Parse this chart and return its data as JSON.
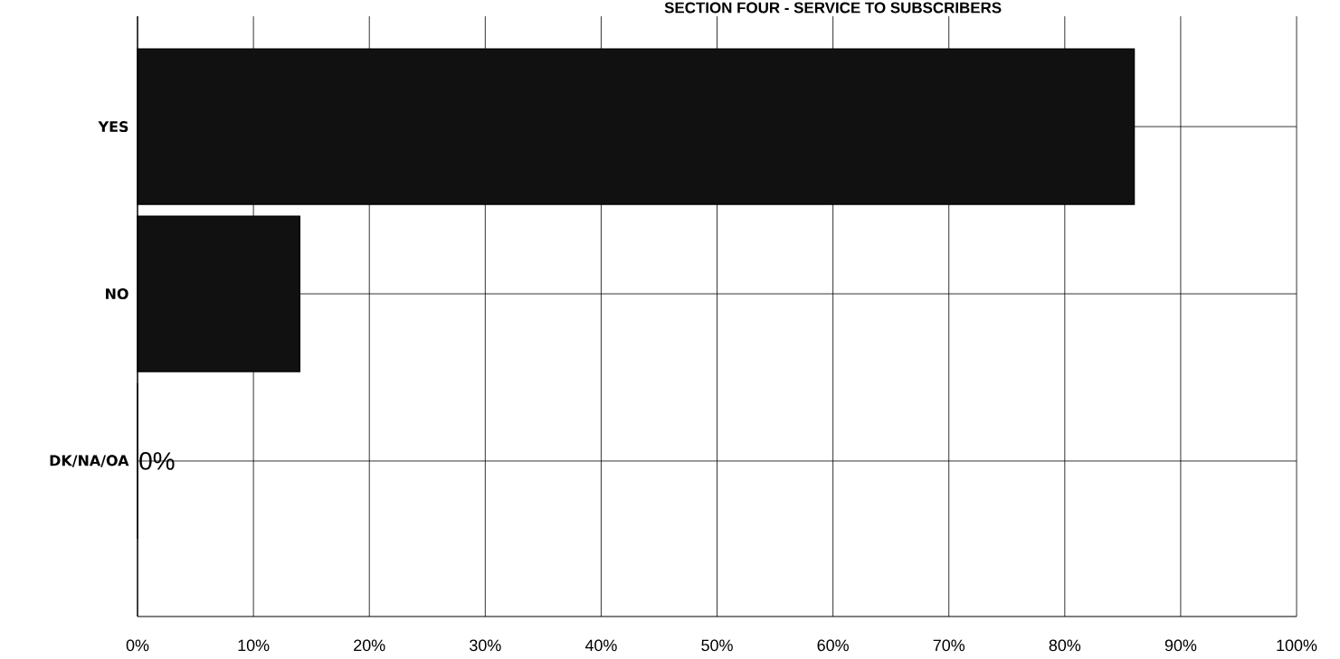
{
  "chart_data": {
    "type": "bar",
    "orientation": "horizontal",
    "title": "SECTION FOUR - SERVICE TO SUBSCRIBERS",
    "categories": [
      "YES",
      "NO",
      "DK/NA/OA"
    ],
    "values": [
      86,
      14,
      0
    ],
    "value_labels": [
      null,
      null,
      "0%"
    ],
    "color": "#111111",
    "xlim": [
      0,
      100
    ],
    "xticks": [
      {
        "value": 0,
        "label": "0%"
      },
      {
        "value": 10,
        "label": "10%"
      },
      {
        "value": 20,
        "label": "20%"
      },
      {
        "value": 30,
        "label": "30%"
      },
      {
        "value": 40,
        "label": "40%"
      },
      {
        "value": 50,
        "label": "50%"
      },
      {
        "value": 60,
        "label": "60%"
      },
      {
        "value": 70,
        "label": "70%"
      },
      {
        "value": 80,
        "label": "80%"
      },
      {
        "value": 90,
        "label": "90%"
      },
      {
        "value": 100,
        "label": "100%"
      }
    ],
    "grid": true
  }
}
